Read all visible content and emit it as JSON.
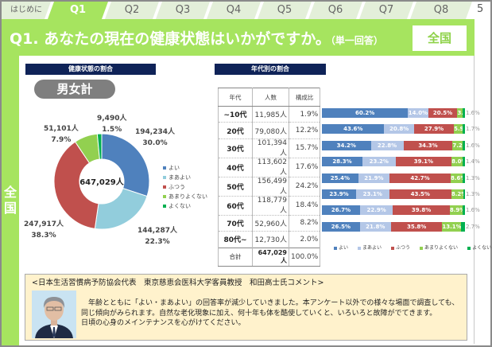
{
  "tabs": [
    "はじめに",
    "Q1",
    "Q2",
    "Q3",
    "Q4",
    "Q5",
    "Q6",
    "Q7",
    "Q8"
  ],
  "active_tab": "Q1",
  "page_number": "5",
  "header": {
    "title": "Q1. あなたの現在の健康状態はいかがですか。",
    "note": "（単一回答）",
    "region": "全国"
  },
  "side_label": "全国",
  "left_section": {
    "title": "健康状態の割合",
    "pill": "男女計",
    "total": "647,029人"
  },
  "right_section": {
    "title": "年代別の割合"
  },
  "legend": [
    "よい",
    "まあよい",
    "ふつう",
    "あまりよくない",
    "よくない"
  ],
  "colors": [
    "#4f81bd",
    "#92cddc",
    "#c0504d",
    "#92d050",
    "#00b050"
  ],
  "bar_colors": [
    "#4f81bd",
    "#b4c7e7",
    "#c0504d",
    "#92d050",
    "#00b050"
  ],
  "chart_data": [
    {
      "type": "pie",
      "title": "健康状態の割合",
      "categories": [
        "よい",
        "まあよい",
        "ふつう",
        "あまりよくない",
        "よくない"
      ],
      "counts": [
        "194,234人",
        "144,287人",
        "247,917人",
        "51,101人",
        "9,490人"
      ],
      "percent_labels": [
        "30.0%",
        "22.3%",
        "38.3%",
        "7.9%",
        "1.5%"
      ],
      "values": [
        30.0,
        22.3,
        38.3,
        7.9,
        1.5
      ],
      "center_label": "647,029人"
    },
    {
      "type": "bar",
      "stacked": true,
      "title": "年代別の割合",
      "categories": [
        "~10代",
        "20代",
        "30代",
        "40代",
        "50代",
        "60代",
        "70代",
        "80代~"
      ],
      "series": [
        {
          "name": "よい",
          "values": [
            60.2,
            43.6,
            34.2,
            28.3,
            25.4,
            23.9,
            26.7,
            26.5
          ]
        },
        {
          "name": "まあよい",
          "values": [
            14.0,
            20.8,
            22.8,
            23.2,
            21.9,
            23.1,
            22.9,
            21.8
          ]
        },
        {
          "name": "ふつう",
          "values": [
            20.5,
            27.9,
            34.3,
            39.1,
            42.7,
            43.5,
            39.8,
            35.8
          ]
        },
        {
          "name": "あまりよくない",
          "values": [
            3.8,
            5.9,
            7.2,
            8.0,
            8.6,
            8.2,
            8.9,
            13.1
          ]
        },
        {
          "name": "よくない",
          "values": [
            1.6,
            1.7,
            1.6,
            1.4,
            1.3,
            1.3,
            1.6,
            2.7
          ]
        }
      ]
    }
  ],
  "table": {
    "headers": [
      "年代",
      "人数",
      "構成比"
    ],
    "rows": [
      [
        "~10代",
        "11,985人",
        "1.9%"
      ],
      [
        "20代",
        "79,080人",
        "12.2%"
      ],
      [
        "30代",
        "101,394人",
        "15.7%"
      ],
      [
        "40代",
        "113,602人",
        "17.6%"
      ],
      [
        "50代",
        "156,499人",
        "24.2%"
      ],
      [
        "60代",
        "118,779人",
        "18.4%"
      ],
      [
        "70代",
        "52,960人",
        "8.2%"
      ],
      [
        "80代~",
        "12,730人",
        "2.0%"
      ]
    ],
    "total": [
      "合計",
      "647,029人",
      "100.0%"
    ]
  },
  "comment": {
    "title": "<日本生活習慣病予防協会代表　東京慈恵会医科大学客員教授　和田高士氏コメント>",
    "lines": [
      "　年齢とともに「よい・まあよい」の回答率が減少していきました。本アンケート以外での様々な場面で調査しても、",
      "同じ傾向がみられます。自然な老化現象に加え、何十年も体を酷使していくと、いろいろと故障がでてきます。",
      "日頃の心身のメインテナンスを心がけてください。"
    ]
  }
}
